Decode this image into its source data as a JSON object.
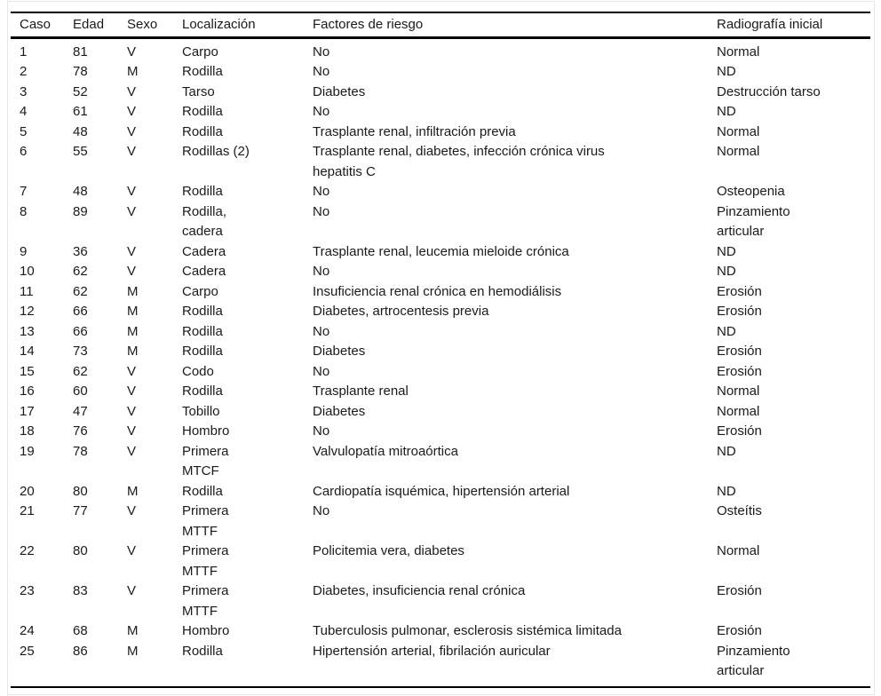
{
  "table": {
    "columns": [
      {
        "key": "caso",
        "label": "Caso"
      },
      {
        "key": "edad",
        "label": "Edad"
      },
      {
        "key": "sexo",
        "label": "Sexo"
      },
      {
        "key": "localizacion",
        "label": "Localización"
      },
      {
        "key": "factores",
        "label": "Factores de riesgo"
      },
      {
        "key": "radiografia",
        "label": "Radiografía inicial"
      }
    ],
    "rows": [
      [
        "1",
        "81",
        "V",
        "Carpo",
        "No",
        "Normal"
      ],
      [
        "2",
        "78",
        "M",
        "Rodilla",
        "No",
        "ND"
      ],
      [
        "3",
        "52",
        "V",
        "Tarso",
        "Diabetes",
        "Destrucción tarso"
      ],
      [
        "4",
        "61",
        "V",
        "Rodilla",
        "No",
        "ND"
      ],
      [
        "5",
        "48",
        "V",
        "Rodilla",
        "Trasplante renal, infiltración previa",
        "Normal"
      ],
      [
        "6",
        "55",
        "V",
        "Rodillas (2)",
        "Trasplante renal, diabetes, infección crónica virus\nhepatitis C",
        "Normal"
      ],
      [
        "7",
        "48",
        "V",
        "Rodilla",
        "No",
        "Osteopenia"
      ],
      [
        "8",
        "89",
        "V",
        "Rodilla,\ncadera",
        "No",
        "Pinzamiento\narticular"
      ],
      [
        "9",
        "36",
        "V",
        "Cadera",
        "Trasplante renal, leucemia mieloide crónica",
        "ND"
      ],
      [
        "10",
        "62",
        "V",
        "Cadera",
        "No",
        "ND"
      ],
      [
        "11",
        "62",
        "M",
        "Carpo",
        "Insuficiencia renal crónica en hemodiálisis",
        "Erosión"
      ],
      [
        "12",
        "66",
        "M",
        "Rodilla",
        "Diabetes, artrocentesis previa",
        "Erosión"
      ],
      [
        "13",
        "66",
        "M",
        "Rodilla",
        "No",
        "ND"
      ],
      [
        "14",
        "73",
        "M",
        "Rodilla",
        "Diabetes",
        "Erosión"
      ],
      [
        "15",
        "62",
        "V",
        "Codo",
        "No",
        "Erosión"
      ],
      [
        "16",
        "60",
        "V",
        "Rodilla",
        "Trasplante renal",
        "Normal"
      ],
      [
        "17",
        "47",
        "V",
        "Tobillo",
        "Diabetes",
        "Normal"
      ],
      [
        "18",
        "76",
        "V",
        "Hombro",
        "No",
        "Erosión"
      ],
      [
        "19",
        "78",
        "V",
        "Primera\nMTCF",
        "Valvulopatía mitroaórtica",
        "ND"
      ],
      [
        "20",
        "80",
        "M",
        "Rodilla",
        "Cardiopatía isquémica, hipertensión arterial",
        "ND"
      ],
      [
        "21",
        "77",
        "V",
        "Primera\nMTTF",
        "No",
        "Osteítis"
      ],
      [
        "22",
        "80",
        "V",
        "Primera\nMTTF",
        "Policitemia vera, diabetes",
        "Normal"
      ],
      [
        "23",
        "83",
        "V",
        "Primera\nMTTF",
        "Diabetes, insuficiencia renal crónica",
        "Erosión"
      ],
      [
        "24",
        "68",
        "M",
        "Hombro",
        "Tuberculosis pulmonar, esclerosis sistémica limitada",
        "Erosión"
      ],
      [
        "25",
        "86",
        "M",
        "Rodilla",
        "Hipertensión arterial, fibrilación auricular",
        "Pinzamiento\narticular"
      ]
    ]
  }
}
